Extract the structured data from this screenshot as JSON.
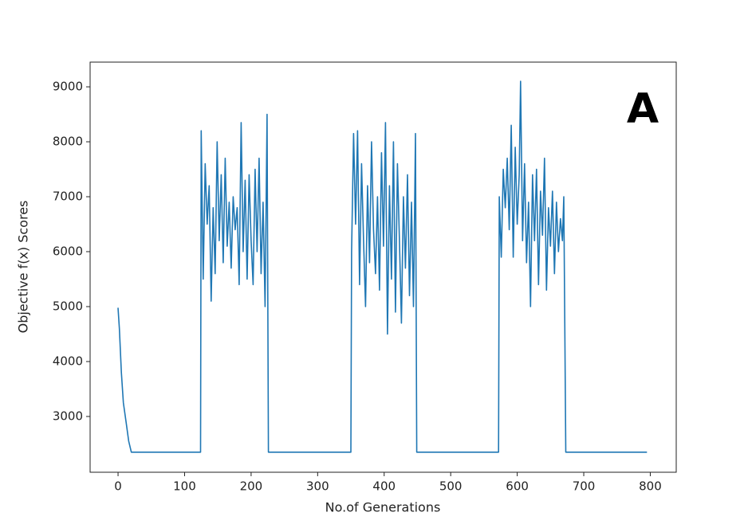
{
  "chart_data": {
    "type": "line",
    "annotation": "A",
    "xlabel": "No.of Generations",
    "ylabel": "Objective f(x) Scores",
    "color": "#1f77b4",
    "xlim": [
      -42,
      839
    ],
    "ylim": [
      1985,
      9450
    ],
    "xticks": [
      0,
      100,
      200,
      300,
      400,
      500,
      600,
      700,
      800
    ],
    "yticks": [
      3000,
      4000,
      5000,
      6000,
      7000,
      8000,
      9000
    ],
    "x": [
      0,
      2,
      5,
      8,
      12,
      16,
      20,
      124,
      125,
      128,
      131,
      134,
      137,
      140,
      143,
      146,
      149,
      152,
      155,
      158,
      161,
      164,
      167,
      170,
      173,
      176,
      179,
      182,
      185,
      188,
      191,
      194,
      197,
      200,
      203,
      206,
      209,
      212,
      215,
      218,
      221,
      224,
      226,
      350,
      351,
      354,
      357,
      360,
      363,
      366,
      369,
      372,
      375,
      378,
      381,
      384,
      387,
      390,
      393,
      396,
      399,
      402,
      405,
      408,
      411,
      414,
      417,
      420,
      423,
      426,
      429,
      432,
      435,
      438,
      441,
      444,
      447,
      449,
      572,
      573,
      576,
      579,
      582,
      585,
      588,
      591,
      594,
      597,
      600,
      603,
      605,
      608,
      611,
      614,
      617,
      620,
      623,
      626,
      629,
      632,
      635,
      638,
      641,
      644,
      647,
      650,
      653,
      656,
      659,
      662,
      665,
      668,
      670,
      673,
      795
    ],
    "values": [
      4980,
      4600,
      3800,
      3250,
      2900,
      2550,
      2350,
      2350,
      8200,
      5500,
      7600,
      6500,
      7200,
      5100,
      6800,
      5600,
      8000,
      6200,
      7400,
      5800,
      7700,
      6100,
      6900,
      5700,
      7000,
      6400,
      6800,
      5400,
      8350,
      6000,
      7300,
      5500,
      7400,
      6200,
      5400,
      7500,
      6000,
      7700,
      5600,
      6900,
      5000,
      8500,
      2350,
      2350,
      6000,
      8150,
      6500,
      8200,
      5400,
      7600,
      6200,
      5000,
      7200,
      5800,
      8000,
      6400,
      5600,
      7000,
      5300,
      7800,
      6100,
      8350,
      4500,
      7200,
      5500,
      8000,
      4900,
      7600,
      6200,
      4700,
      7000,
      5700,
      7400,
      5200,
      6900,
      5000,
      8150,
      2350,
      2350,
      7000,
      5900,
      7500,
      6800,
      7700,
      6400,
      8300,
      5900,
      7900,
      6500,
      7400,
      9100,
      6200,
      7600,
      5800,
      6900,
      5000,
      7400,
      6200,
      7500,
      5400,
      7100,
      6300,
      7700,
      5300,
      6800,
      6100,
      7100,
      5600,
      6900,
      6000,
      6600,
      6200,
      7000,
      2350,
      2350
    ]
  }
}
